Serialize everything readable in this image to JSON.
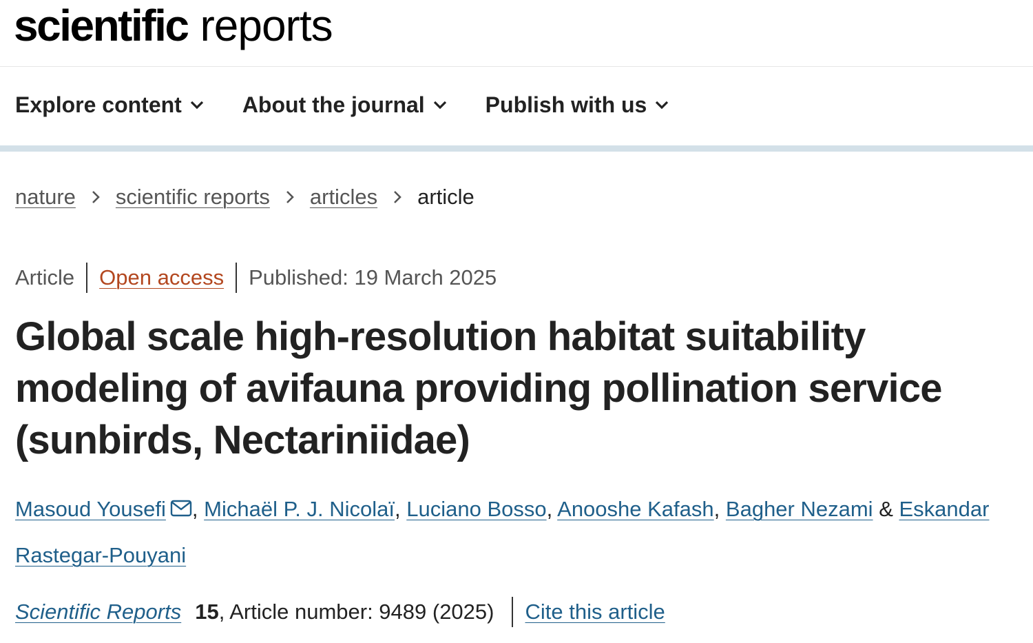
{
  "logo": {
    "bold": "scientific",
    "light": "reports"
  },
  "nav": {
    "items": [
      {
        "label": "Explore content",
        "icon": "chevron-down-icon"
      },
      {
        "label": "About the journal",
        "icon": "chevron-down-icon"
      },
      {
        "label": "Publish with us",
        "icon": "chevron-down-icon"
      }
    ]
  },
  "breadcrumb": {
    "items": [
      "nature",
      "scientific reports",
      "articles"
    ],
    "current": "article"
  },
  "meta": {
    "type": "Article",
    "access": "Open access",
    "published": "Published: 19 March 2025"
  },
  "title": "Global scale high-resolution habitat suitability modeling of avifauna providing pollination service (sunbirds, Nectariniidae)",
  "authors": [
    {
      "name": "Masoud Yousefi"
    },
    {
      "name": "Michaël P. J. Nicolaï"
    },
    {
      "name": "Luciano Bosso"
    },
    {
      "name": "Anooshe Kafash"
    },
    {
      "name": "Bagher Nezami"
    },
    {
      "name": "Eskandar Rastegar-Pouyani"
    }
  ],
  "authors_separators": {
    "comma": ",",
    "ampersand": "&"
  },
  "citation": {
    "journal": "Scientific Reports",
    "volume": "15",
    "article_number": ", Article number: 9489 (2025)",
    "cite_label": "Cite this article"
  },
  "colors": {
    "link": "#1f5f8a",
    "open_access": "#b3471f",
    "nav_border": "#d3e0e8",
    "text": "#222222",
    "muted": "#555555"
  }
}
